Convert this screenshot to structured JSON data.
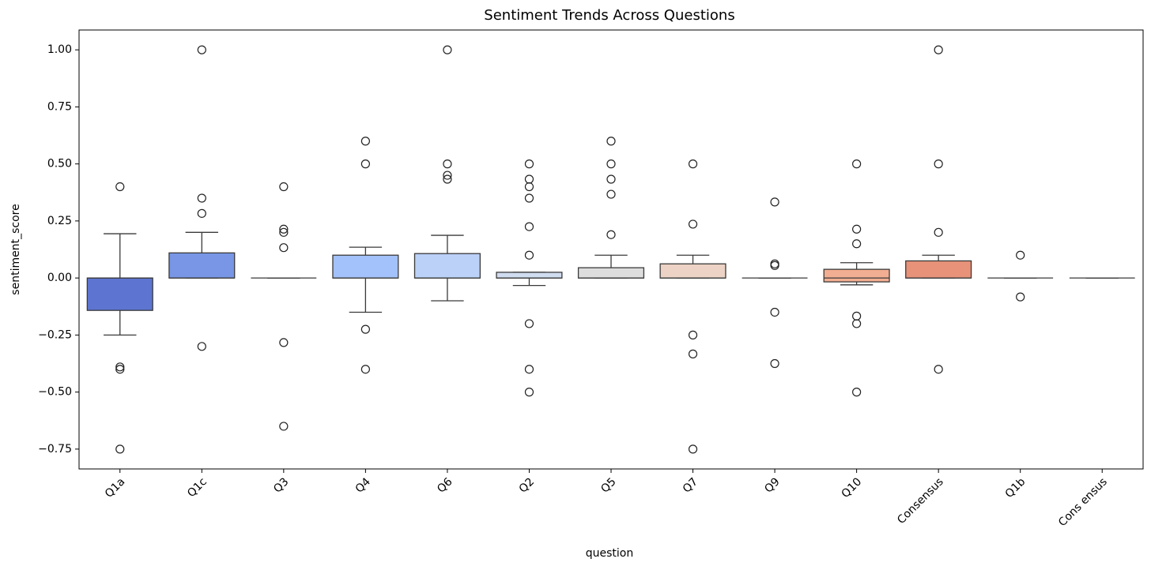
{
  "chart_data": {
    "type": "box",
    "title": "Sentiment Trends Across Questions",
    "x_label": "question",
    "y_label": "sentiment_score",
    "categories": [
      "Q1a",
      "Q1c",
      "Q3",
      "Q4",
      "Q6",
      "Q2",
      "Q5",
      "Q7",
      "Q9",
      "Q10",
      "Consensus",
      "Q1b",
      "Cons ensus"
    ],
    "colors": [
      "#5d75d0",
      "#7896e5",
      "#8db0fe",
      "#a3c1fb",
      "#bbd1f8",
      "#d0dcef",
      "#dddddd",
      "#ecd3c5",
      "#f3c3ab",
      "#f2ae92",
      "#e8927a",
      "#dd7a5f",
      "#c85b4a"
    ],
    "boxes": [
      {
        "low": -0.25,
        "q1": -0.142,
        "median": 0,
        "q3": 0,
        "high": 0.194,
        "outliers": [
          0.4,
          -0.39,
          -0.4,
          -0.75
        ]
      },
      {
        "low": 0,
        "q1": 0,
        "median": 0,
        "q3": 0.11,
        "high": 0.2,
        "outliers": [
          1.0,
          0.35,
          0.283,
          -0.3
        ]
      },
      {
        "low": 0,
        "q1": 0,
        "median": 0,
        "q3": 0,
        "high": 0,
        "outliers": [
          0.4,
          0.214,
          0.2,
          0.133,
          -0.283,
          -0.65
        ]
      },
      {
        "low": -0.15,
        "q1": 0,
        "median": 0,
        "q3": 0.1,
        "high": 0.135,
        "outliers": [
          0.6,
          0.5,
          -0.225,
          -0.4
        ]
      },
      {
        "low": -0.1,
        "q1": 0,
        "median": 0,
        "q3": 0.107,
        "high": 0.187,
        "outliers": [
          1.0,
          0.5,
          0.45,
          0.433
        ]
      },
      {
        "low": -0.033,
        "q1": 0,
        "median": 0,
        "q3": 0.025,
        "high": 0.025,
        "outliers": [
          0.5,
          0.433,
          0.4,
          0.35,
          0.225,
          0.1,
          -0.2,
          -0.4,
          -0.5
        ]
      },
      {
        "low": 0,
        "q1": 0,
        "median": 0,
        "q3": 0.045,
        "high": 0.1,
        "outliers": [
          0.6,
          0.5,
          0.433,
          0.367,
          0.19
        ]
      },
      {
        "low": 0,
        "q1": 0,
        "median": 0,
        "q3": 0.062,
        "high": 0.1,
        "outliers": [
          0.5,
          0.236,
          -0.25,
          -0.333,
          -0.75
        ]
      },
      {
        "low": 0,
        "q1": 0,
        "median": 0,
        "q3": 0,
        "high": 0,
        "outliers": [
          0.333,
          0.062,
          0.055,
          -0.15,
          -0.375
        ]
      },
      {
        "low": -0.03,
        "q1": -0.017,
        "median": 0,
        "q3": 0.038,
        "high": 0.067,
        "outliers": [
          0.5,
          0.214,
          0.15,
          -0.167,
          -0.2,
          -0.5
        ]
      },
      {
        "low": 0,
        "q1": 0,
        "median": 0,
        "q3": 0.075,
        "high": 0.1,
        "outliers": [
          1.0,
          0.5,
          0.2,
          -0.4
        ]
      },
      {
        "low": 0,
        "q1": 0,
        "median": 0,
        "q3": 0,
        "high": 0,
        "outliers": [
          0.1,
          -0.083
        ]
      },
      {
        "low": 0,
        "q1": 0,
        "median": 0,
        "q3": 0,
        "high": 0,
        "outliers": []
      }
    ],
    "ylim": [
      -0.837,
      1.087
    ],
    "yticks": [
      {
        "value": -0.75,
        "label": "−0.75"
      },
      {
        "value": -0.5,
        "label": "−0.50"
      },
      {
        "value": -0.25,
        "label": "−0.25"
      },
      {
        "value": 0,
        "label": "0.00"
      },
      0.25,
      {
        "value": 0.5,
        "label": "0.50"
      },
      0.75,
      {
        "value": 1,
        "label": "1.00"
      }
    ]
  }
}
